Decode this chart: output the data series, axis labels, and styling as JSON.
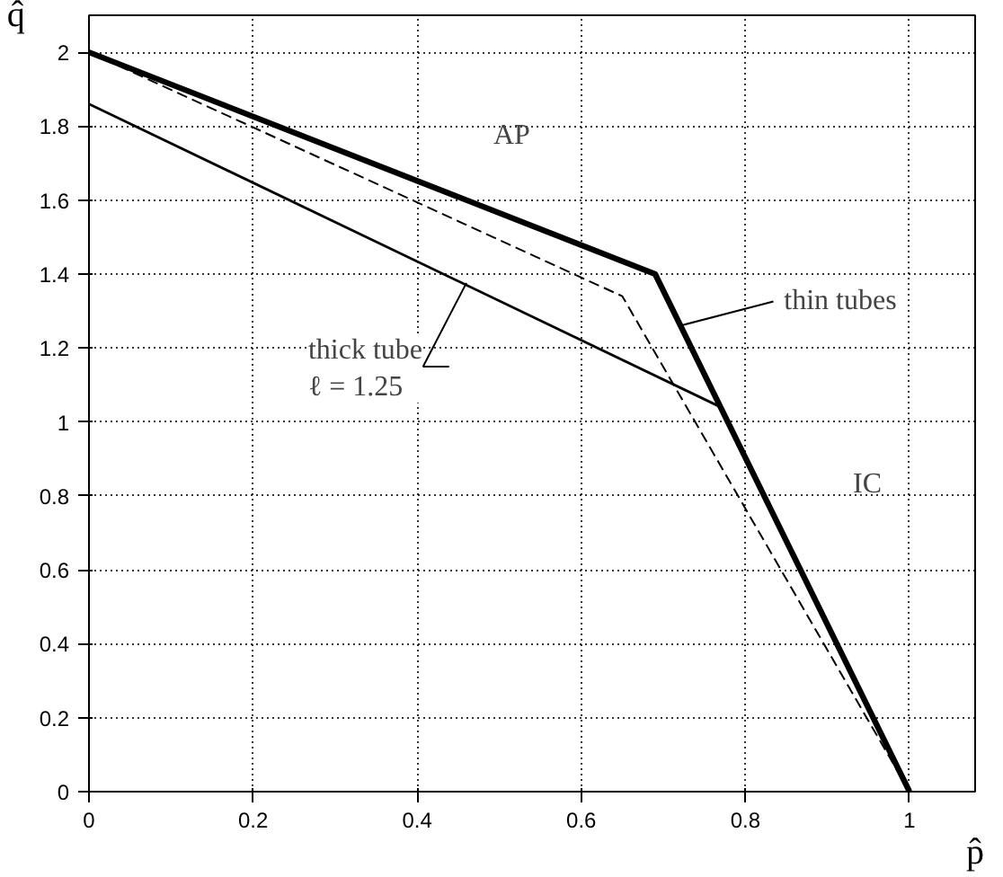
{
  "chart_data": {
    "type": "line",
    "xlabel": "p̂",
    "ylabel": "q̂",
    "xlim": [
      0,
      1.08
    ],
    "ylim": [
      0,
      2.1
    ],
    "xticks": [
      0,
      0.2,
      0.4,
      0.6,
      0.8,
      1
    ],
    "yticks": [
      0,
      0.2,
      0.4,
      0.6,
      0.8,
      1,
      1.2,
      1.4,
      1.6,
      1.8,
      2
    ],
    "grid": true,
    "marker": "none",
    "series": [
      {
        "color": "#000000",
        "x": [
          0,
          0.69,
          1
        ],
        "values": [
          2,
          1.4,
          0
        ],
        "line_style": "solid"
      },
      {
        "color": "#000000",
        "x": [
          0,
          0.65,
          1
        ],
        "values": [
          2,
          1.34,
          0
        ],
        "line_style": "dashed"
      },
      {
        "color": "#000000",
        "x": [
          0,
          0.77,
          1
        ],
        "values": [
          1.86,
          1.04,
          0
        ],
        "line_style": "solid"
      }
    ],
    "annotations": [
      "AP",
      "IC",
      {
        "text": "thin tubes",
        "x": 0.72,
        "y": 1.26
      },
      {
        "text": "thick tube\nℓ = 1.25",
        "x": 0.46,
        "y": 1.376
      }
    ]
  }
}
